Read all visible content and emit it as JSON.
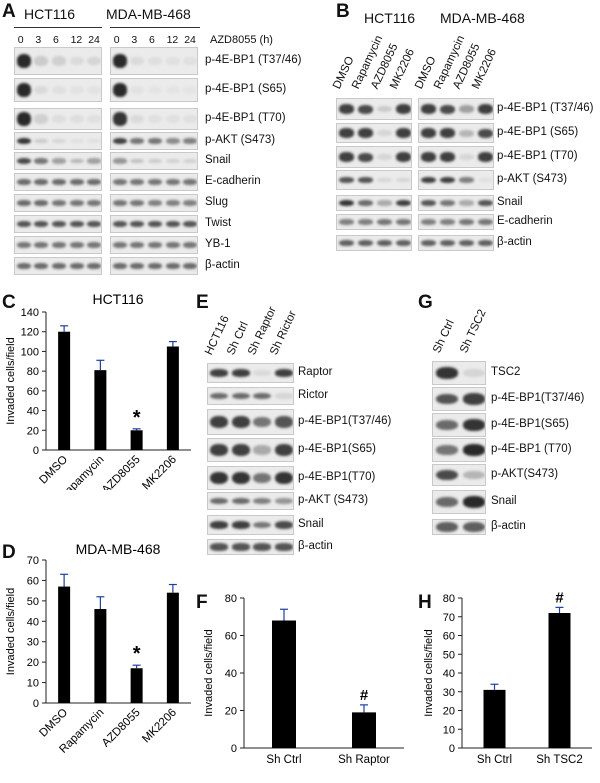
{
  "panels": {
    "A": {
      "letter": "A",
      "cell_lines": [
        "HCT116",
        "MDA-MB-468"
      ],
      "timepoints": [
        "0",
        "3",
        "6",
        "12",
        "24"
      ],
      "treatment_label": "AZD8055 (h)",
      "rows": [
        "p-4E-BP1 (T37/46)",
        "p-4E-BP1 (S65)",
        "p-4E-BP1 (T70)",
        "p-AKT (S473)",
        "Snail",
        "E-cadherin",
        "Slug",
        "Twist",
        "YB-1",
        "β-actin"
      ]
    },
    "B": {
      "letter": "B",
      "cell_lines": [
        "HCT116",
        "MDA-MB-468"
      ],
      "lanes": [
        "DMSO",
        "Rapamycin",
        "AZD8055",
        "MK2206"
      ],
      "rows": [
        "p-4E-BP1 (T37/46)",
        "p-4E-BP1 (S65)",
        "p-4E-BP1 (T70)",
        "p-AKT (S473)",
        "Snail",
        "E-cadherin",
        "β-actin"
      ]
    },
    "C": {
      "letter": "C"
    },
    "D": {
      "letter": "D"
    },
    "E": {
      "letter": "E",
      "lanes": [
        "HCT116",
        "Sh Ctrl",
        "Sh Raptor",
        "Sh Rictor"
      ],
      "rows": [
        "Raptor",
        "Rictor",
        "p-4E-BP1(T37/46)",
        "p-4E-BP1(S65)",
        "p-4E-BP1(T70)",
        "p-AKT (S473)",
        "Snail",
        "β-actin"
      ]
    },
    "F": {
      "letter": "F"
    },
    "G": {
      "letter": "G",
      "lanes": [
        "Sh Ctrl",
        "Sh TSC2"
      ],
      "rows": [
        "TSC2",
        "p-4E-BP1(T37/46)",
        "p-4E-BP1(S65)",
        "p-4E-BP1 (T70)",
        "p-AKT(S473)",
        "Snail",
        "β-actin"
      ]
    },
    "H": {
      "letter": "H"
    }
  },
  "chart_data": [
    {
      "id": "C",
      "type": "bar",
      "title": "HCT116",
      "ylabel": "Invaded cells/field",
      "ylim": [
        0,
        140
      ],
      "yticks": [
        0,
        20,
        40,
        60,
        80,
        100,
        120,
        140
      ],
      "categories": [
        "DMSO",
        "Rapamycin",
        "AZD8055",
        "MK2206"
      ],
      "values": [
        120,
        81,
        20,
        105
      ],
      "errors": [
        6,
        10,
        1.5,
        5
      ],
      "annotations": [
        {
          "category": "AZD8055",
          "text": "*"
        }
      ],
      "bar_color": "#000000",
      "error_color": "#1f3fa0"
    },
    {
      "id": "D",
      "type": "bar",
      "title": "MDA-MB-468",
      "ylabel": "Invaded cells/field",
      "ylim": [
        0,
        70
      ],
      "yticks": [
        0,
        10,
        20,
        30,
        40,
        50,
        60,
        70
      ],
      "categories": [
        "DMSO",
        "Rapamycin",
        "AZD8055",
        "MK2206"
      ],
      "values": [
        57,
        46,
        17,
        54
      ],
      "errors": [
        6,
        6,
        1.5,
        4
      ],
      "annotations": [
        {
          "category": "AZD8055",
          "text": "*"
        }
      ],
      "bar_color": "#000000",
      "error_color": "#1f3fa0"
    },
    {
      "id": "F",
      "type": "bar",
      "title": "",
      "ylabel": "Invaded cells/field",
      "ylim": [
        0,
        80
      ],
      "yticks": [
        0,
        20,
        40,
        60,
        80
      ],
      "categories": [
        "Sh Ctrl",
        "Sh Raptor"
      ],
      "values": [
        68,
        19
      ],
      "errors": [
        6,
        4
      ],
      "annotations": [
        {
          "category": "Sh Raptor",
          "text": "#"
        }
      ],
      "bar_color": "#000000",
      "error_color": "#1f3fa0"
    },
    {
      "id": "H",
      "type": "bar",
      "title": "",
      "ylabel": "Invaded cells/field",
      "ylim": [
        0,
        80
      ],
      "yticks": [
        0,
        10,
        20,
        30,
        40,
        50,
        60,
        70,
        80
      ],
      "categories": [
        "Sh Ctrl",
        "Sh TSC2"
      ],
      "values": [
        31,
        72
      ],
      "errors": [
        3,
        3
      ],
      "annotations": [
        {
          "category": "Sh TSC2",
          "text": "#"
        }
      ],
      "bar_color": "#000000",
      "error_color": "#1f3fa0"
    }
  ]
}
